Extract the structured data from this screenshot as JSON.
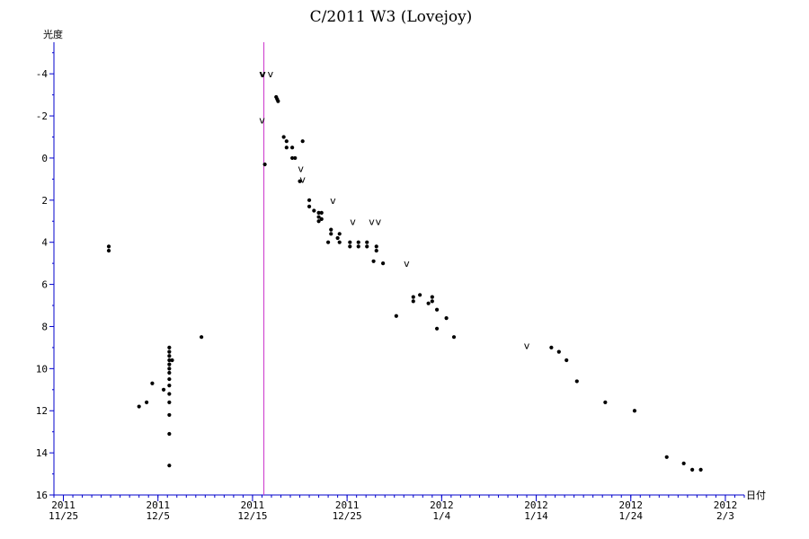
{
  "chart_data": {
    "type": "scatter",
    "title": "C/2011 W3 (Lovejoy)",
    "xlabel": "日付",
    "ylabel": "光度",
    "y_inverted": true,
    "ylim": [
      -5.5,
      16
    ],
    "y_ticks": [
      -4,
      -2,
      0,
      2,
      4,
      6,
      8,
      10,
      12,
      14,
      16
    ],
    "y_tick_labels": [
      "-4",
      "-2",
      "0",
      "2",
      "4",
      "6",
      "8",
      "10",
      "12",
      "14",
      "16"
    ],
    "xlim": [
      "2011-11-24",
      "2012-02-05"
    ],
    "x_ticks": [
      {
        "date": "2011-11-25",
        "line1": "2011",
        "line2": "11/25"
      },
      {
        "date": "2011-12-05",
        "line1": "2011",
        "line2": "12/5"
      },
      {
        "date": "2011-12-15",
        "line1": "2011",
        "line2": "12/15"
      },
      {
        "date": "2011-12-25",
        "line1": "2011",
        "line2": "12/25"
      },
      {
        "date": "2012-01-04",
        "line1": "2012",
        "line2": "1/4"
      },
      {
        "date": "2012-01-14",
        "line1": "2012",
        "line2": "1/14"
      },
      {
        "date": "2012-01-24",
        "line1": "2012",
        "line2": "1/24"
      },
      {
        "date": "2012-02-03",
        "line1": "2012",
        "line2": "2/3"
      }
    ],
    "reference_line": {
      "date": "2011-12-16.2",
      "color": "#cc33cc"
    },
    "series": [
      {
        "marker": "dot",
        "points": [
          {
            "x": "2011-11-29.8",
            "y": 4.2
          },
          {
            "x": "2011-11-29.8",
            "y": 4.4
          },
          {
            "x": "2011-12-03.0",
            "y": 11.8
          },
          {
            "x": "2011-12-03.8",
            "y": 11.6
          },
          {
            "x": "2011-12-04.4",
            "y": 10.7
          },
          {
            "x": "2011-12-05.6",
            "y": 11.0
          },
          {
            "x": "2011-12-06.2",
            "y": 9.0
          },
          {
            "x": "2011-12-06.2",
            "y": 9.2
          },
          {
            "x": "2011-12-06.2",
            "y": 9.4
          },
          {
            "x": "2011-12-06.2",
            "y": 9.6
          },
          {
            "x": "2011-12-06.2",
            "y": 9.8
          },
          {
            "x": "2011-12-06.2",
            "y": 10.0
          },
          {
            "x": "2011-12-06.2",
            "y": 10.2
          },
          {
            "x": "2011-12-06.2",
            "y": 10.5
          },
          {
            "x": "2011-12-06.2",
            "y": 10.8
          },
          {
            "x": "2011-12-06.2",
            "y": 11.2
          },
          {
            "x": "2011-12-06.2",
            "y": 11.6
          },
          {
            "x": "2011-12-06.2",
            "y": 12.2
          },
          {
            "x": "2011-12-06.2",
            "y": 13.1
          },
          {
            "x": "2011-12-06.2",
            "y": 14.6
          },
          {
            "x": "2011-12-06.5",
            "y": 9.6
          },
          {
            "x": "2011-12-09.6",
            "y": 8.5
          },
          {
            "x": "2011-12-16.3",
            "y": 0.3
          },
          {
            "x": "2011-12-17.5",
            "y": -2.9
          },
          {
            "x": "2011-12-17.6",
            "y": -2.8
          },
          {
            "x": "2011-12-17.7",
            "y": -2.7
          },
          {
            "x": "2011-12-18.3",
            "y": -1.0
          },
          {
            "x": "2011-12-18.6",
            "y": -0.8
          },
          {
            "x": "2011-12-18.6",
            "y": -0.5
          },
          {
            "x": "2011-12-19.2",
            "y": -0.5
          },
          {
            "x": "2011-12-19.2",
            "y": 0.0
          },
          {
            "x": "2011-12-19.5",
            "y": 0.0
          },
          {
            "x": "2011-12-20.3",
            "y": -0.8
          },
          {
            "x": "2011-12-20.0",
            "y": 1.1
          },
          {
            "x": "2011-12-21.0",
            "y": 2.0
          },
          {
            "x": "2011-12-21.0",
            "y": 2.3
          },
          {
            "x": "2011-12-21.5",
            "y": 2.5
          },
          {
            "x": "2011-12-22.0",
            "y": 2.6
          },
          {
            "x": "2011-12-22.0",
            "y": 2.8
          },
          {
            "x": "2011-12-22.0",
            "y": 3.0
          },
          {
            "x": "2011-12-22.3",
            "y": 2.6
          },
          {
            "x": "2011-12-22.3",
            "y": 2.9
          },
          {
            "x": "2011-12-23.3",
            "y": 3.4
          },
          {
            "x": "2011-12-23.3",
            "y": 3.6
          },
          {
            "x": "2011-12-23.0",
            "y": 4.0
          },
          {
            "x": "2011-12-24.2",
            "y": 3.6
          },
          {
            "x": "2011-12-24.0",
            "y": 3.8
          },
          {
            "x": "2011-12-24.2",
            "y": 4.0
          },
          {
            "x": "2011-12-25.3",
            "y": 4.0
          },
          {
            "x": "2011-12-25.3",
            "y": 4.2
          },
          {
            "x": "2011-12-26.2",
            "y": 4.0
          },
          {
            "x": "2011-12-26.2",
            "y": 4.2
          },
          {
            "x": "2011-12-27.1",
            "y": 4.0
          },
          {
            "x": "2011-12-27.1",
            "y": 4.2
          },
          {
            "x": "2011-12-28.1",
            "y": 4.2
          },
          {
            "x": "2011-12-28.1",
            "y": 4.4
          },
          {
            "x": "2011-12-27.8",
            "y": 4.9
          },
          {
            "x": "2011-12-28.8",
            "y": 5.0
          },
          {
            "x": "2011-12-30.2",
            "y": 7.5
          },
          {
            "x": "2012-01-01.0",
            "y": 6.6
          },
          {
            "x": "2012-01-01.0",
            "y": 6.8
          },
          {
            "x": "2012-01-01.7",
            "y": 6.5
          },
          {
            "x": "2012-01-02.6",
            "y": 6.9
          },
          {
            "x": "2012-01-03.0",
            "y": 6.6
          },
          {
            "x": "2012-01-03.0",
            "y": 6.8
          },
          {
            "x": "2012-01-03.5",
            "y": 7.2
          },
          {
            "x": "2012-01-03.5",
            "y": 8.1
          },
          {
            "x": "2012-01-04.5",
            "y": 7.6
          },
          {
            "x": "2012-01-05.3",
            "y": 8.5
          },
          {
            "x": "2012-01-15.6",
            "y": 9.0
          },
          {
            "x": "2012-01-16.4",
            "y": 9.2
          },
          {
            "x": "2012-01-17.2",
            "y": 9.6
          },
          {
            "x": "2012-01-18.3",
            "y": 10.6
          },
          {
            "x": "2012-01-21.3",
            "y": 11.6
          },
          {
            "x": "2012-01-24.4",
            "y": 12.0
          },
          {
            "x": "2012-01-27.8",
            "y": 14.2
          },
          {
            "x": "2012-01-29.6",
            "y": 14.5
          },
          {
            "x": "2012-01-30.5",
            "y": 14.8
          },
          {
            "x": "2012-01-31.4",
            "y": 14.8
          }
        ]
      },
      {
        "marker": "v",
        "points": [
          {
            "x": "2011-12-16.0",
            "y": -4.0
          },
          {
            "x": "2011-12-16.1",
            "y": -4.0
          },
          {
            "x": "2011-12-16.9",
            "y": -4.0
          },
          {
            "x": "2011-12-16.0",
            "y": -1.8
          },
          {
            "x": "2011-12-20.1",
            "y": 0.5
          },
          {
            "x": "2011-12-20.3",
            "y": 1.0
          },
          {
            "x": "2011-12-23.5",
            "y": 2.0
          },
          {
            "x": "2011-12-25.6",
            "y": 3.0
          },
          {
            "x": "2011-12-27.6",
            "y": 3.0
          },
          {
            "x": "2011-12-28.3",
            "y": 3.0
          },
          {
            "x": "2011-12-31.3",
            "y": 5.0
          },
          {
            "x": "2012-01-13.0",
            "y": 8.9
          }
        ]
      }
    ]
  }
}
